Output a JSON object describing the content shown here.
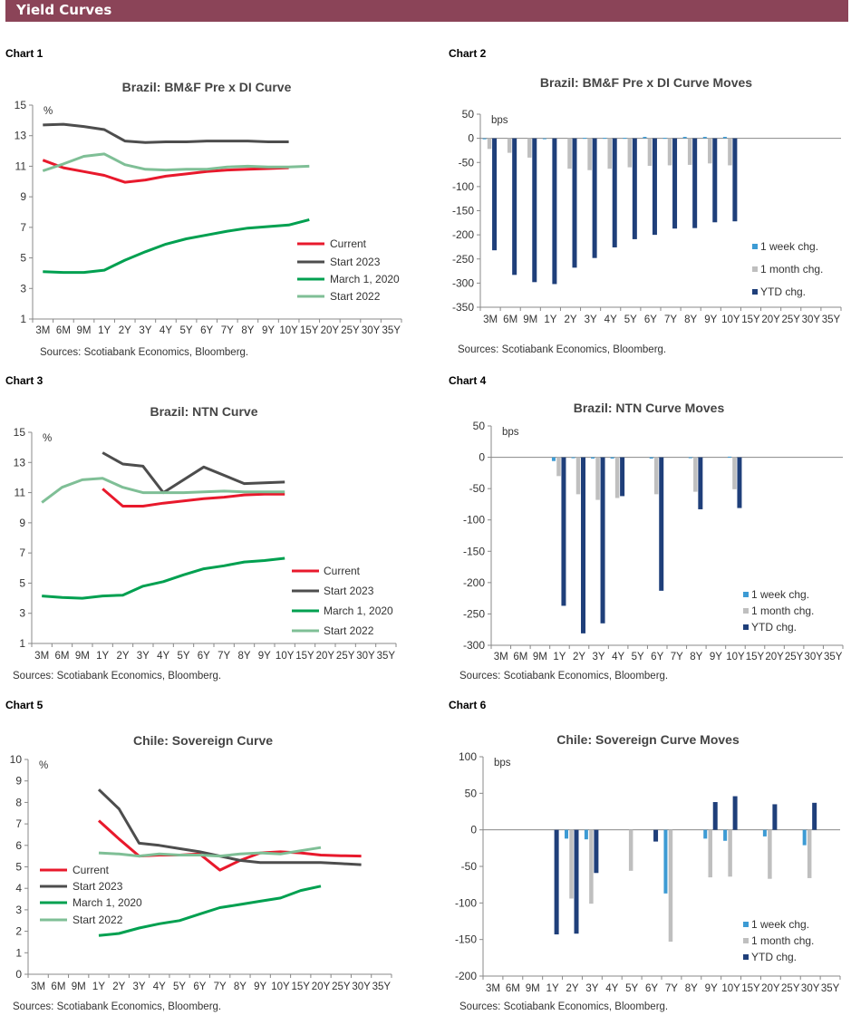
{
  "header": {
    "title": "Yield Curves"
  },
  "charts": [
    {
      "label": "Chart 1",
      "sources": "Sources: Scotiabank Economics, Bloomberg."
    },
    {
      "label": "Chart 2",
      "sources": "Sources: Scotiabank Economics, Bloomberg."
    },
    {
      "label": "Chart 3",
      "sources": "Sources: Scotiabank Economics, Bloomberg."
    },
    {
      "label": "Chart 4",
      "sources": "Sources: Scotiabank Economics, Bloomberg."
    },
    {
      "label": "Chart 5",
      "sources": "Sources: Scotiabank Economics, Bloomberg."
    },
    {
      "label": "Chart 6",
      "sources": "Sources: Scotiabank Economics, Bloomberg."
    }
  ],
  "colors": {
    "header": "#8B4458",
    "current": "#E8192C",
    "start_2023": "#4D4D4D",
    "march_2020": "#00A050",
    "start_2022": "#7FBF96",
    "week": "#3D9BD4",
    "month": "#BFBFBF",
    "ytd": "#1F3F7A"
  },
  "chart_data": [
    {
      "type": "line",
      "title": "Brazil: BM&F Pre x DI Curve",
      "ylabel": "%",
      "ylim": [
        1,
        15
      ],
      "ystep": 2,
      "legend": "right",
      "categories": [
        "3M",
        "6M",
        "9M",
        "1Y",
        "2Y",
        "3Y",
        "4Y",
        "5Y",
        "6Y",
        "7Y",
        "8Y",
        "9Y",
        "10Y",
        "15Y",
        "20Y",
        "25Y",
        "30Y",
        "35Y"
      ],
      "series": [
        {
          "name": "Current",
          "color": "#E8192C",
          "values": [
            11.4,
            10.9,
            10.65,
            10.4,
            9.95,
            10.1,
            10.35,
            10.5,
            10.65,
            10.75,
            10.8,
            10.85,
            10.9,
            null,
            null,
            null,
            null,
            null
          ]
        },
        {
          "name": "Start 2023",
          "color": "#4D4D4D",
          "values": [
            13.7,
            13.75,
            13.6,
            13.4,
            12.65,
            12.55,
            12.6,
            12.6,
            12.65,
            12.65,
            12.65,
            12.6,
            12.6,
            null,
            null,
            null,
            null,
            null
          ]
        },
        {
          "name": "March 1, 2020",
          "color": "#00A050",
          "values": [
            4.1,
            4.05,
            4.05,
            4.2,
            4.85,
            5.4,
            5.9,
            6.25,
            6.5,
            6.75,
            6.95,
            7.05,
            7.15,
            7.5,
            null,
            null,
            null,
            null
          ]
        },
        {
          "name": "Start 2022",
          "color": "#7FBF96",
          "values": [
            10.7,
            11.15,
            11.65,
            11.8,
            11.1,
            10.8,
            10.75,
            10.8,
            10.8,
            10.95,
            11.0,
            10.95,
            10.95,
            11.0,
            null,
            null,
            null,
            null
          ]
        }
      ]
    },
    {
      "type": "bar",
      "title": "Brazil: BM&F Pre x DI Curve Moves",
      "ylabel": "bps",
      "ylim": [
        -350,
        50
      ],
      "ystep": 50,
      "legend": "bottom-right",
      "categories": [
        "3M",
        "6M",
        "9M",
        "1Y",
        "2Y",
        "3Y",
        "4Y",
        "5Y",
        "6Y",
        "7Y",
        "8Y",
        "9Y",
        "10Y",
        "15Y",
        "20Y",
        "25Y",
        "30Y",
        "35Y"
      ],
      "series": [
        {
          "name": "1 week chg.",
          "color": "#3D9BD4",
          "values": [
            -2,
            0,
            0,
            -1,
            0,
            1,
            1,
            1,
            3,
            1,
            3,
            3,
            3,
            null,
            null,
            null,
            null,
            null
          ]
        },
        {
          "name": "1 month chg.",
          "color": "#BFBFBF",
          "values": [
            -22,
            -30,
            -40,
            0,
            -63,
            -66,
            -63,
            -60,
            -57,
            -56,
            -55,
            -52,
            -56,
            null,
            null,
            null,
            null,
            null
          ]
        },
        {
          "name": "YTD chg.",
          "color": "#1F3F7A",
          "values": [
            -232,
            -283,
            -298,
            -302,
            -268,
            -248,
            -226,
            -209,
            -200,
            -187,
            -186,
            -174,
            -172,
            null,
            null,
            null,
            null,
            null
          ]
        }
      ]
    },
    {
      "type": "line",
      "title": "Brazil: NTN Curve",
      "ylabel": "%",
      "ylim": [
        1,
        15
      ],
      "ystep": 2,
      "legend": "right",
      "categories": [
        "3M",
        "6M",
        "9M",
        "1Y",
        "2Y",
        "3Y",
        "4Y",
        "5Y",
        "6Y",
        "7Y",
        "8Y",
        "9Y",
        "10Y",
        "15Y",
        "20Y",
        "25Y",
        "30Y",
        "35Y"
      ],
      "series": [
        {
          "name": "Current",
          "color": "#E8192C",
          "values": [
            null,
            null,
            null,
            11.25,
            10.1,
            10.1,
            10.3,
            10.45,
            10.6,
            10.7,
            10.85,
            10.9,
            10.9,
            null,
            null,
            null,
            null,
            null
          ]
        },
        {
          "name": "Start 2023",
          "color": "#4D4D4D",
          "values": [
            null,
            null,
            null,
            13.65,
            12.9,
            12.75,
            11.0,
            null,
            12.7,
            null,
            11.6,
            null,
            11.7,
            null,
            null,
            null,
            null,
            null
          ]
        },
        {
          "name": "March 1, 2020",
          "color": "#00A050",
          "values": [
            4.15,
            4.05,
            4.0,
            4.15,
            4.2,
            4.8,
            5.1,
            5.55,
            5.95,
            6.15,
            6.4,
            6.5,
            6.65,
            null,
            null,
            null,
            null,
            null
          ]
        },
        {
          "name": "Start 2022",
          "color": "#7FBF96",
          "values": [
            10.35,
            11.35,
            11.85,
            11.95,
            11.35,
            11.0,
            11.0,
            11.0,
            11.05,
            11.1,
            11.05,
            11.05,
            11.05,
            null,
            null,
            null,
            null,
            null
          ]
        }
      ]
    },
    {
      "type": "bar",
      "title": "Brazil: NTN Curve Moves",
      "ylabel": "bps",
      "ylim": [
        -300,
        50
      ],
      "ystep": 50,
      "legend": "bottom-right",
      "categories": [
        "3M",
        "6M",
        "9M",
        "1Y",
        "2Y",
        "3Y",
        "4Y",
        "5Y",
        "6Y",
        "7Y",
        "8Y",
        "9Y",
        "10Y",
        "15Y",
        "20Y",
        "25Y",
        "30Y",
        "35Y"
      ],
      "series": [
        {
          "name": "1 week chg.",
          "color": "#3D9BD4",
          "values": [
            null,
            null,
            null,
            -6,
            -1,
            -2,
            -2,
            null,
            -2,
            null,
            -1,
            null,
            1,
            null,
            null,
            null,
            null,
            null
          ]
        },
        {
          "name": "1 month chg.",
          "color": "#BFBFBF",
          "values": [
            null,
            null,
            null,
            -30,
            -59,
            -68,
            -65,
            null,
            -59,
            null,
            -55,
            null,
            -51,
            null,
            null,
            null,
            null,
            null
          ]
        },
        {
          "name": "YTD chg.",
          "color": "#1F3F7A",
          "values": [
            null,
            null,
            null,
            -237,
            -281,
            -265,
            -62,
            null,
            -213,
            null,
            -83,
            null,
            -81,
            null,
            null,
            null,
            null,
            null
          ]
        }
      ]
    },
    {
      "type": "line",
      "title": "Chile: Sovereign Curve",
      "ylabel": "%",
      "ylim": [
        0,
        10
      ],
      "ystep": 1,
      "legend": "left-middle",
      "categories": [
        "3M",
        "6M",
        "9M",
        "1Y",
        "2Y",
        "3Y",
        "4Y",
        "5Y",
        "6Y",
        "7Y",
        "8Y",
        "9Y",
        "10Y",
        "15Y",
        "20Y",
        "25Y",
        "30Y",
        "35Y"
      ],
      "series": [
        {
          "name": "Current",
          "color": "#E8192C",
          "values": [
            null,
            null,
            null,
            7.15,
            6.3,
            5.5,
            5.55,
            5.55,
            5.6,
            4.85,
            5.3,
            5.65,
            5.7,
            5.65,
            5.55,
            5.52,
            5.5,
            null
          ]
        },
        {
          "name": "Start 2023",
          "color": "#4D4D4D",
          "values": [
            null,
            null,
            null,
            8.6,
            7.7,
            6.1,
            6.0,
            5.85,
            5.7,
            5.5,
            5.3,
            5.2,
            5.2,
            5.2,
            5.2,
            5.15,
            5.1,
            null
          ]
        },
        {
          "name": "March 1, 2020",
          "color": "#00A050",
          "values": [
            null,
            null,
            null,
            1.8,
            1.9,
            2.15,
            2.35,
            2.5,
            2.8,
            3.1,
            3.25,
            3.4,
            3.55,
            3.9,
            4.1,
            null,
            null,
            null
          ]
        },
        {
          "name": "Start 2022",
          "color": "#7FBF96",
          "values": [
            null,
            null,
            null,
            5.65,
            5.6,
            5.5,
            5.6,
            5.55,
            5.55,
            5.5,
            5.6,
            5.65,
            5.6,
            5.75,
            5.9,
            null,
            null,
            null
          ]
        }
      ]
    },
    {
      "type": "bar",
      "title": "Chile: Sovereign Curve Moves",
      "ylabel": "bps",
      "ylim": [
        -200,
        100
      ],
      "ystep": 50,
      "legend": "bottom-right",
      "categories": [
        "3M",
        "6M",
        "9M",
        "1Y",
        "2Y",
        "3Y",
        "4Y",
        "5Y",
        "6Y",
        "7Y",
        "8Y",
        "9Y",
        "10Y",
        "15Y",
        "20Y",
        "25Y",
        "30Y",
        "35Y"
      ],
      "series": [
        {
          "name": "1 week chg.",
          "color": "#3D9BD4",
          "values": [
            null,
            null,
            null,
            null,
            -12,
            -13,
            null,
            null,
            null,
            -87,
            null,
            -12,
            -15,
            null,
            -9,
            null,
            -21,
            null
          ]
        },
        {
          "name": "1 month chg.",
          "color": "#BFBFBF",
          "values": [
            null,
            null,
            null,
            null,
            -94,
            -101,
            null,
            -56,
            null,
            -153,
            null,
            -65,
            -64,
            null,
            -67,
            null,
            -66,
            null
          ]
        },
        {
          "name": "YTD chg.",
          "color": "#1F3F7A",
          "values": [
            null,
            null,
            null,
            -143,
            -142,
            -59,
            null,
            null,
            -16,
            null,
            null,
            38,
            46,
            null,
            35,
            null,
            37,
            null
          ]
        }
      ]
    }
  ]
}
